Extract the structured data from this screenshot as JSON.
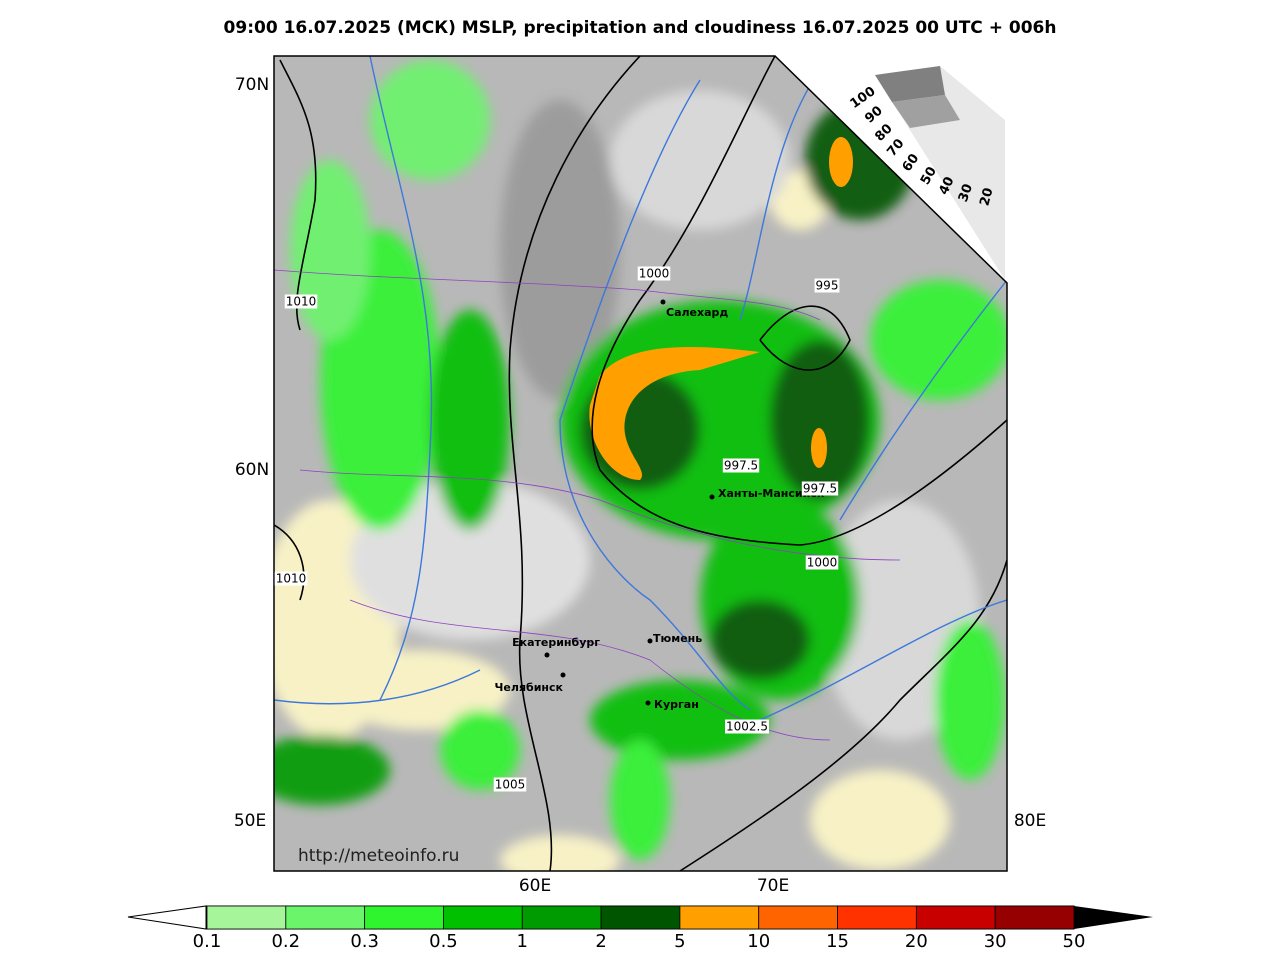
{
  "header": {
    "title": "09:00 16.07.2025 (МСК) MSLP, precipitation and cloudiness 16.07.2025 00 UTC + 006h"
  },
  "map": {
    "lat_labels": [
      "70N",
      "60N"
    ],
    "lon_labels": [
      "50E",
      "80E",
      "60E",
      "70E"
    ],
    "cities": [
      "Салехард",
      "Ханты-Мансийск",
      "Екатеринбург",
      "Тюмень",
      "Челябинск",
      "Курган"
    ],
    "isobar_labels": [
      "1000",
      "995",
      "1010",
      "997.5",
      "997.5",
      "1000",
      "1010",
      "1002.5",
      "1005"
    ],
    "source": "http://meteoinfo.ru"
  },
  "cloud_scale": {
    "labels": [
      "100",
      "90",
      "80",
      "70",
      "60",
      "50",
      "40",
      "30",
      "20"
    ]
  },
  "colorbar": {
    "ticks": [
      0.1,
      0.2,
      0.3,
      0.5,
      1,
      2,
      5,
      10,
      15,
      20,
      30,
      50
    ],
    "colors": [
      "#a6f59b",
      "#6af56a",
      "#2ef52e",
      "#00c000",
      "#009b00",
      "#005500",
      "#ffa000",
      "#ff6400",
      "#ff3200",
      "#c80000",
      "#960000"
    ]
  }
}
